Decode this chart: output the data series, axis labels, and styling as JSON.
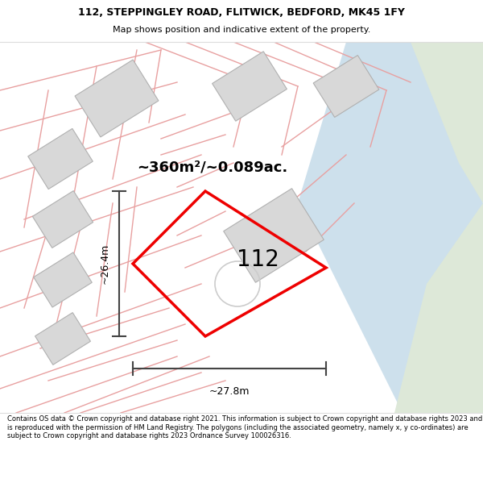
{
  "title_line1": "112, STEPPINGLEY ROAD, FLITWICK, BEDFORD, MK45 1FY",
  "title_line2": "Map shows position and indicative extent of the property.",
  "footer_text": "Contains OS data © Crown copyright and database right 2021. This information is subject to Crown copyright and database rights 2023 and is reproduced with the permission of HM Land Registry. The polygons (including the associated geometry, namely x, y co-ordinates) are subject to Crown copyright and database rights 2023 Ordnance Survey 100026316.",
  "map_bg": "#f8f7f5",
  "road_color": "#cde0ec",
  "green_color": "#dde8d8",
  "plot_color": "#ee0000",
  "pink_line_color": "#e8a0a0",
  "building_fill": "#d8d8d8",
  "building_edge": "#b0b0b0",
  "grey_line_color": "#b0b0b0",
  "area_label": "~360m²/~0.089ac.",
  "width_label": "~27.8m",
  "height_label": "~26.4m",
  "label_112": "112",
  "fig_width": 6.0,
  "fig_height": 6.25,
  "dpi": 100
}
